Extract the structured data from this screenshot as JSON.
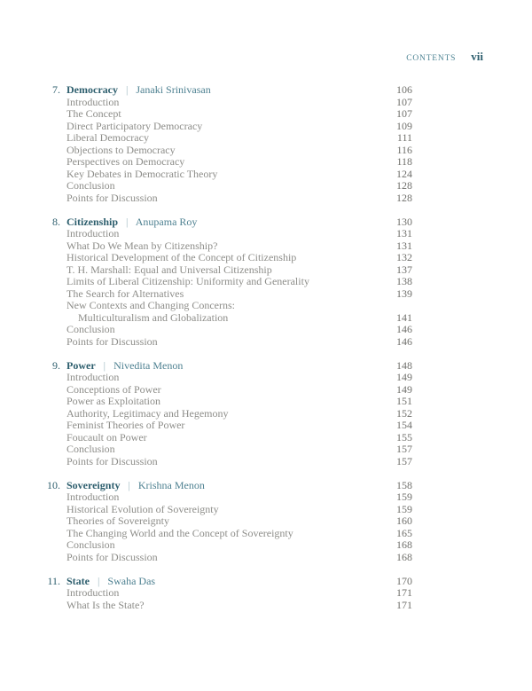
{
  "header": {
    "running_head": "CONTENTS",
    "page_number": "vii"
  },
  "divider_glyph": "|",
  "colors": {
    "teal_dark": "#2e5f6e",
    "teal_mid": "#4e8191",
    "teal_light": "#9cb8c0",
    "entry_gray": "#8d8d89",
    "page_number_gray": "#70706c",
    "background": "#ffffff"
  },
  "chapters": [
    {
      "number": "7.",
      "title": "Democracy",
      "author": "Janaki Srinivasan",
      "page": "106",
      "entries": [
        {
          "label": "Introduction",
          "page": "107"
        },
        {
          "label": "The Concept",
          "page": "107"
        },
        {
          "label": "Direct Participatory Democracy",
          "page": "109"
        },
        {
          "label": "Liberal Democracy",
          "page": "111"
        },
        {
          "label": "Objections to Democracy",
          "page": "116"
        },
        {
          "label": "Perspectives on Democracy",
          "page": "118"
        },
        {
          "label": "Key Debates in Democratic Theory",
          "page": "124"
        },
        {
          "label": "Conclusion",
          "page": "128"
        },
        {
          "label": "Points for Discussion",
          "page": "128"
        }
      ]
    },
    {
      "number": "8.",
      "title": "Citizenship",
      "author": "Anupama Roy",
      "page": "130",
      "entries": [
        {
          "label": "Introduction",
          "page": "131"
        },
        {
          "label": "What Do We Mean by Citizenship?",
          "page": "131"
        },
        {
          "label": "Historical Development of the Concept of Citizenship",
          "page": "132"
        },
        {
          "label": "T. H. Marshall: Equal and Universal Citizenship",
          "page": "137"
        },
        {
          "label": "Limits of Liberal Citizenship: Uniformity and Generality",
          "page": "138"
        },
        {
          "label": "The Search for Alternatives",
          "page": "139"
        },
        {
          "label": "New Contexts and Changing Concerns:",
          "page": ""
        },
        {
          "label": "Multiculturalism and Globalization",
          "page": "141",
          "indent": true
        },
        {
          "label": "Conclusion",
          "page": "146"
        },
        {
          "label": "Points for Discussion",
          "page": "146"
        }
      ]
    },
    {
      "number": "9.",
      "title": "Power",
      "author": "Nivedita Menon",
      "page": "148",
      "entries": [
        {
          "label": "Introduction",
          "page": "149"
        },
        {
          "label": "Conceptions of Power",
          "page": "149"
        },
        {
          "label": "Power as Exploitation",
          "page": "151"
        },
        {
          "label": "Authority, Legitimacy and Hegemony",
          "page": "152"
        },
        {
          "label": "Feminist Theories of Power",
          "page": "154"
        },
        {
          "label": "Foucault on Power",
          "page": "155"
        },
        {
          "label": "Conclusion",
          "page": "157"
        },
        {
          "label": "Points for Discussion",
          "page": "157"
        }
      ]
    },
    {
      "number": "10.",
      "title": "Sovereignty",
      "author": "Krishna Menon",
      "page": "158",
      "entries": [
        {
          "label": "Introduction",
          "page": "159"
        },
        {
          "label": "Historical Evolution of Sovereignty",
          "page": "159"
        },
        {
          "label": "Theories of Sovereignty",
          "page": "160"
        },
        {
          "label": "The Changing World and the Concept of Sovereignty",
          "page": "165"
        },
        {
          "label": "Conclusion",
          "page": "168"
        },
        {
          "label": "Points for Discussion",
          "page": "168"
        }
      ]
    },
    {
      "number": "11.",
      "title": "State",
      "author": "Swaha Das",
      "page": "170",
      "entries": [
        {
          "label": "Introduction",
          "page": "171"
        },
        {
          "label": "What Is the State?",
          "page": "171"
        }
      ]
    }
  ]
}
